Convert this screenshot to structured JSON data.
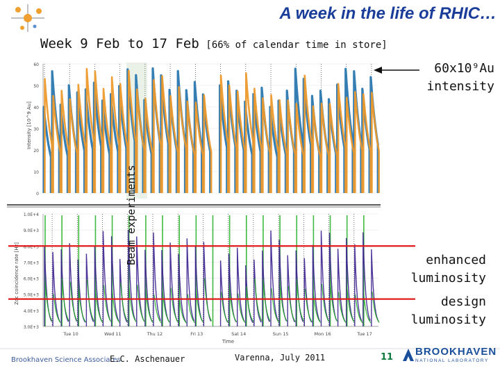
{
  "title": "A week in the life of RHIC…",
  "subtitle": {
    "main": "Week 9 Feb to 17 Feb",
    "note": "[66% of calendar time in store]"
  },
  "annotations": {
    "intensity_line1": "60x10⁹Au",
    "intensity_line2": "intensity",
    "enhanced_line1": "enhanced",
    "enhanced_line2": "luminosity",
    "design_line1": "design",
    "design_line2": "luminosity",
    "side_label": "Beam experiments"
  },
  "footer": {
    "association": "Brookhaven Science Associates",
    "author": "E.C. Aschenauer",
    "venue": "Varenna, July 2011",
    "page": "11",
    "logo_text": "BROOKHAVEN",
    "logo_subtext": "NATIONAL LABORATORY"
  },
  "colors": {
    "title": "#1a3d9a",
    "blue_fill": "#2a78b0",
    "orange_fill": "#ee9a2c",
    "lumi_purple": "#3a1f8e",
    "lumi_green": "#1fae1f",
    "ref_line": "#e01b1b",
    "page_number": "#0a7a3a"
  },
  "chart_data": [
    {
      "type": "line",
      "title": "",
      "ylabel": "Intensity [10^9 Au]",
      "xlabel": "",
      "ylim": [
        0,
        60
      ],
      "y_ticks": [
        "0",
        "10",
        "20",
        "30",
        "40",
        "50",
        "60"
      ],
      "peak_range": [
        40,
        58
      ],
      "series": [
        {
          "color": "blue"
        },
        {
          "color": "orange"
        }
      ]
    },
    {
      "type": "line",
      "title": "",
      "ylabel": "Zdc coincidence rate [Hz]",
      "xlabel": "Time",
      "ylim": [
        3000,
        10000
      ],
      "y_ticks": [
        "3.0E+3",
        "4.0E+3",
        "5.0E+3",
        "6.0E+3",
        "7.0E+3",
        "8.0E+3",
        "9.0E+3",
        "1.0E+4"
      ],
      "x_ticks": [
        "Tue 10",
        "Wed 11",
        "Thu 12",
        "Fri 13",
        "Sat 14",
        "Sun 15",
        "Mon 16",
        "Tue 17"
      ],
      "reference_lines": [
        {
          "label": "enhanced luminosity",
          "y": 8000
        },
        {
          "label": "design luminosity",
          "y": 4700
        }
      ],
      "series": [
        {
          "color": "purple"
        },
        {
          "color": "green"
        }
      ]
    }
  ]
}
